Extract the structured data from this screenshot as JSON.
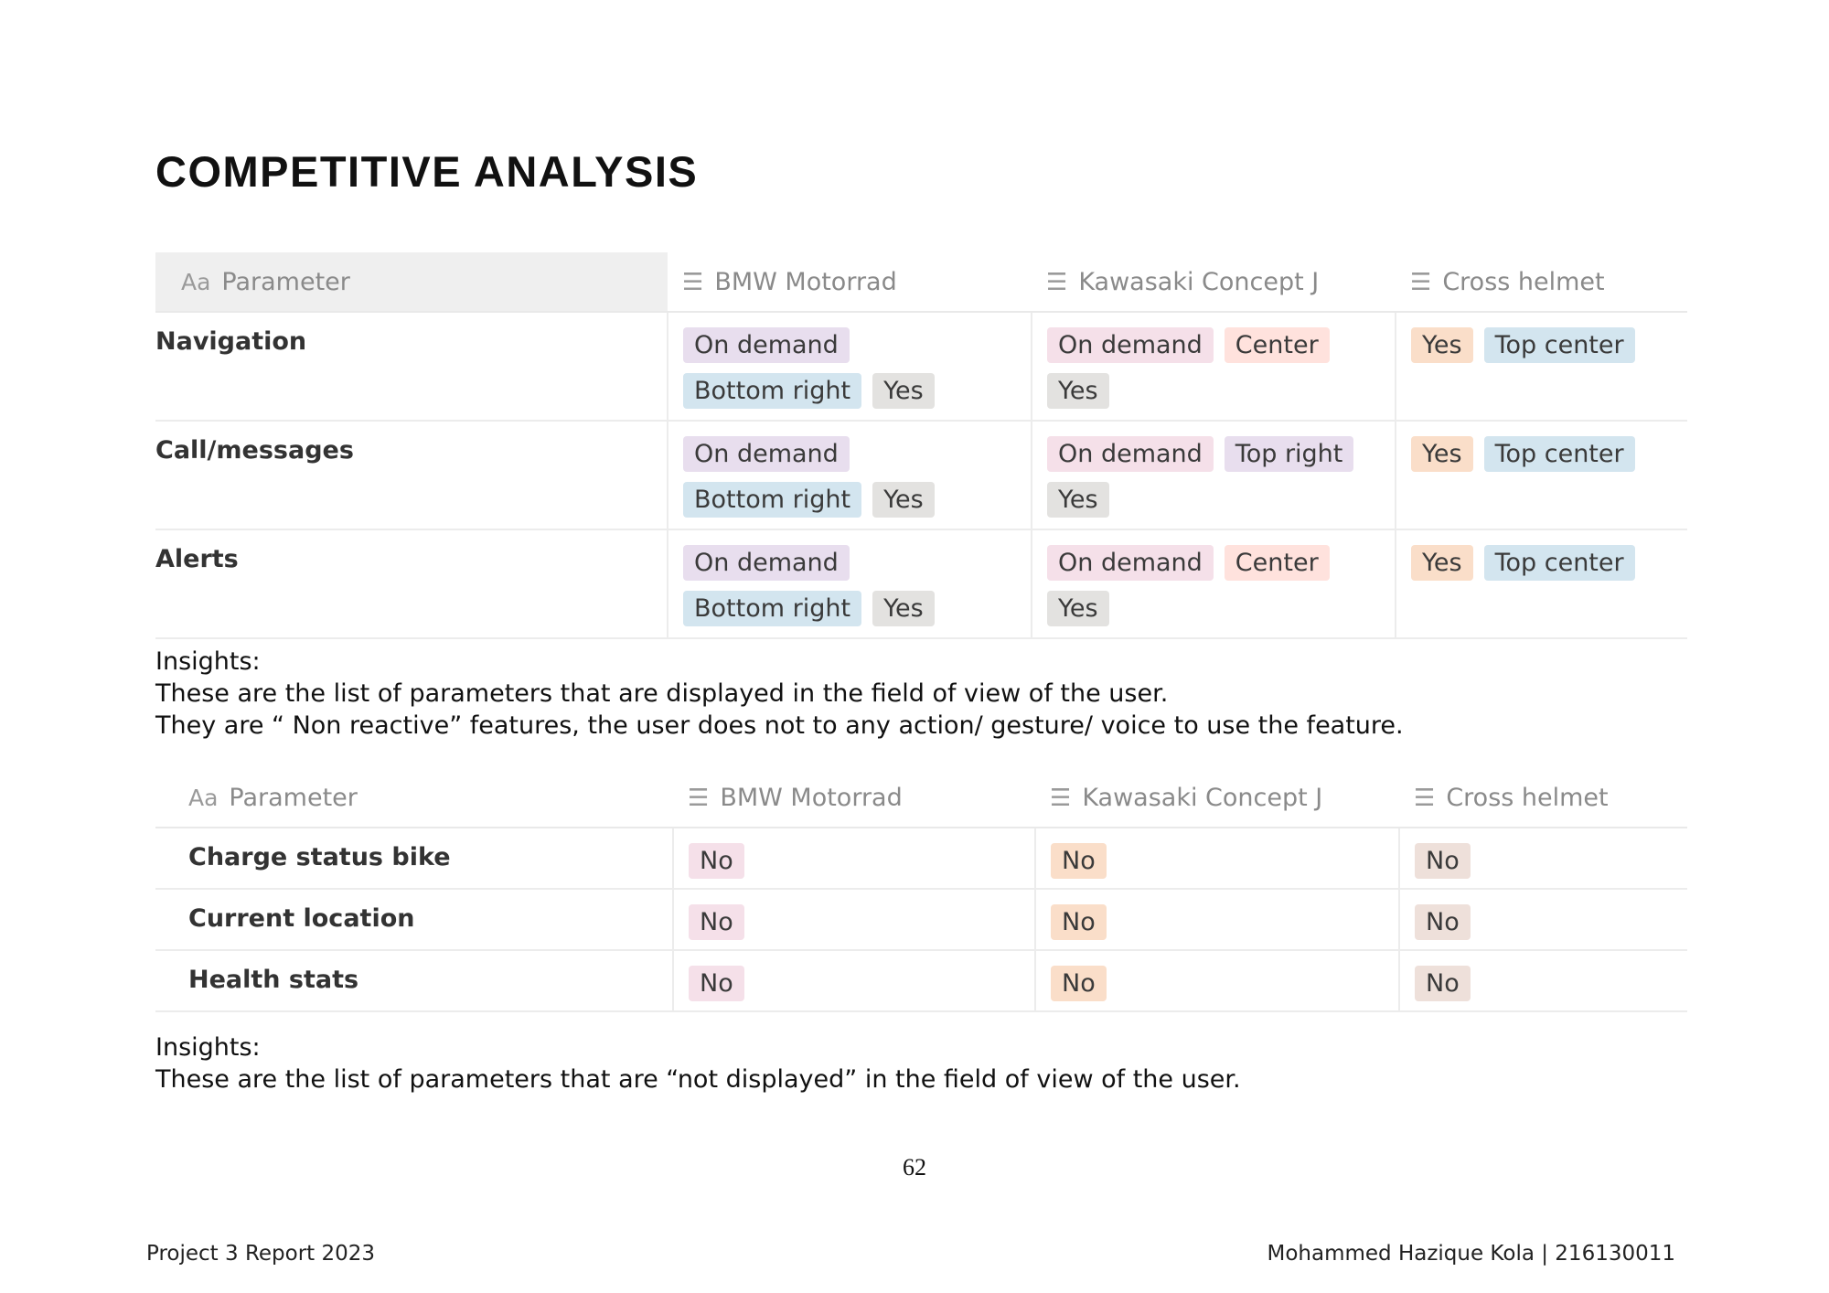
{
  "page": {
    "title": "COMPETITIVE ANALYSIS",
    "page_number": "62",
    "footer_left": "Project 3 Report 2023",
    "footer_right": "Mohammed Hazique Kola | 216130011"
  },
  "colors": {
    "purple": "#e8deee",
    "blue": "#d3e5ef",
    "gray": "#e3e2e0",
    "pink": "#f5e0e9",
    "red": "#ffe2dd",
    "orange": "#fadec9",
    "brown": "#eee0da"
  },
  "table1": {
    "headers": {
      "param_icon": "Aa",
      "param": "Parameter",
      "col1": "BMW Motorrad",
      "col2": "Kawasaki Concept J",
      "col3": "Cross helmet",
      "list_icon": "list-icon"
    },
    "rows": [
      {
        "param": "Navigation",
        "bmw": [
          {
            "text": "On demand",
            "color": "purple"
          },
          {
            "text": "Bottom right",
            "color": "blue"
          },
          {
            "text": "Yes",
            "color": "gray"
          }
        ],
        "kawasaki": [
          {
            "text": "On demand",
            "color": "pink"
          },
          {
            "text": "Center",
            "color": "red"
          },
          {
            "text": "Yes",
            "color": "gray"
          }
        ],
        "cross": [
          {
            "text": "Yes",
            "color": "orange"
          },
          {
            "text": "Top center",
            "color": "blue"
          }
        ]
      },
      {
        "param": "Call/messages",
        "bmw": [
          {
            "text": "On demand",
            "color": "purple"
          },
          {
            "text": "Bottom right",
            "color": "blue"
          },
          {
            "text": "Yes",
            "color": "gray"
          }
        ],
        "kawasaki": [
          {
            "text": "On demand",
            "color": "pink"
          },
          {
            "text": "Top right",
            "color": "purple"
          },
          {
            "text": "Yes",
            "color": "gray"
          }
        ],
        "cross": [
          {
            "text": "Yes",
            "color": "orange"
          },
          {
            "text": "Top center",
            "color": "blue"
          }
        ]
      },
      {
        "param": "Alerts",
        "bmw": [
          {
            "text": "On demand",
            "color": "purple"
          },
          {
            "text": "Bottom right",
            "color": "blue"
          },
          {
            "text": "Yes",
            "color": "gray"
          }
        ],
        "kawasaki": [
          {
            "text": "On demand",
            "color": "pink"
          },
          {
            "text": "Center",
            "color": "red"
          },
          {
            "text": "Yes",
            "color": "gray"
          }
        ],
        "cross": [
          {
            "text": "Yes",
            "color": "orange"
          },
          {
            "text": "Top center",
            "color": "blue"
          }
        ]
      }
    ]
  },
  "insights1": {
    "heading": "Insights:",
    "line1": "These are the list of parameters that are displayed in the field of view of the user.",
    "line2": "They are “ Non reactive” features, the user does not to any action/ gesture/ voice to use the feature."
  },
  "table2": {
    "headers": {
      "param_icon": "Aa",
      "param": "Parameter",
      "col1": "BMW Motorrad",
      "col2": "Kawasaki Concept J",
      "col3": "Cross helmet"
    },
    "rows": [
      {
        "param": "Charge status bike",
        "bmw": [
          {
            "text": "No",
            "color": "pink"
          }
        ],
        "kawasaki": [
          {
            "text": "No",
            "color": "orange"
          }
        ],
        "cross": [
          {
            "text": "No",
            "color": "brown"
          }
        ]
      },
      {
        "param": "Current location",
        "bmw": [
          {
            "text": "No",
            "color": "pink"
          }
        ],
        "kawasaki": [
          {
            "text": "No",
            "color": "orange"
          }
        ],
        "cross": [
          {
            "text": "No",
            "color": "brown"
          }
        ]
      },
      {
        "param": "Health stats",
        "bmw": [
          {
            "text": "No",
            "color": "pink"
          }
        ],
        "kawasaki": [
          {
            "text": "No",
            "color": "orange"
          }
        ],
        "cross": [
          {
            "text": "No",
            "color": "brown"
          }
        ]
      }
    ]
  },
  "insights2": {
    "heading": "Insights:",
    "line1": "These are the list of parameters that are “not displayed” in the field of view of the user."
  }
}
